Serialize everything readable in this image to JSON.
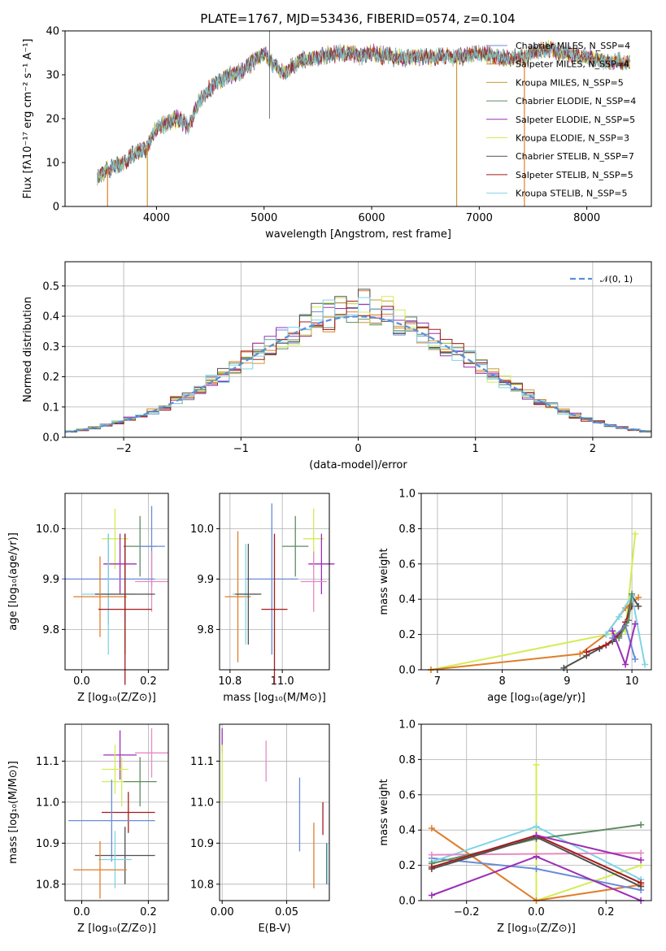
{
  "colors": {
    "Chabrier MILES": "#6a8bd8",
    "Salpeter MILES": "#e07e2b",
    "Kroupa MILES": "#c99a2e",
    "Chabrier ELODIE": "#5e8c62",
    "Salpeter ELODIE": "#9b2fb5",
    "Kroupa ELODIE": "#d4ec55",
    "Chabrier STELIB": "#505050",
    "Salpeter STELIB": "#a51c1c",
    "Kroupa STELIB": "#7fd4e6",
    "pink": "#e78ac3",
    "normal": "#5b8fd6"
  },
  "chart_data": [
    {
      "type": "line",
      "title": "PLATE=1767, MJD=53436, FIBERID=0574, z=0.104",
      "xlabel": "wavelength [Angstrom, rest frame]",
      "ylabel": "Flux [fλ10⁻¹⁷ erg cm⁻² s⁻¹ A⁻¹]",
      "xlim": [
        3150,
        8600
      ],
      "ylim": [
        0,
        40
      ],
      "xticks": [
        "4000",
        "5000",
        "6000",
        "7000",
        "8000"
      ],
      "yticks": [
        "0",
        "10",
        "20",
        "30",
        "40"
      ],
      "legend_position": "top-right",
      "legend": [
        "Chabrier MILES, N_SSP=4",
        "Salpeter MILES, N_SSP=4",
        "Kroupa MILES, N_SSP=5",
        "Chabrier ELODIE, N_SSP=4",
        "Salpeter ELODIE, N_SSP=5",
        "Kroupa ELODIE, N_SSP=3",
        "Chabrier STELIB, N_SSP=7",
        "Salpeter STELIB, N_SSP=5",
        "Kroupa STELIB, N_SSP=5"
      ],
      "continuum": {
        "x": [
          3450,
          3600,
          3700,
          3800,
          3900,
          4000,
          4100,
          4200,
          4300,
          4400,
          4500,
          4600,
          4800,
          4900,
          5000,
          5100,
          5200,
          5300,
          5500,
          5700,
          5800,
          5900,
          6000,
          6200,
          6400,
          6600,
          6800,
          7000,
          7200,
          7400,
          7600,
          7800,
          8000,
          8200,
          8400
        ],
        "y": [
          7,
          9,
          10,
          12,
          13,
          18,
          19,
          20,
          18,
          24,
          27,
          29,
          31,
          33,
          35,
          32,
          30,
          33,
          34,
          35,
          35,
          34,
          35,
          34,
          34,
          34,
          34,
          35,
          34,
          34,
          36,
          35,
          34,
          33,
          33
        ]
      }
    },
    {
      "type": "line",
      "xlabel": "(data-model)/error",
      "ylabel": "Normed distribution",
      "xlim": [
        -2.5,
        2.5
      ],
      "ylim": [
        0,
        0.58
      ],
      "xticks": [
        "−2",
        "−1",
        "0",
        "1",
        "2"
      ],
      "yticks": [
        "0.0",
        "0.1",
        "0.2",
        "0.3",
        "0.4",
        "0.5"
      ],
      "grid": true,
      "legend_position": "top-right",
      "series": [
        {
          "name": "𝒩(0, 1)",
          "dash": true
        }
      ]
    },
    {
      "type": "scatter",
      "xlabel": "Z [log₁₀(Z/Z⊙)]",
      "ylabel": "age  [log₁₀(age/yr)]",
      "xlim": [
        -0.05,
        0.26
      ],
      "ylim": [
        9.72,
        10.07
      ],
      "xticks": [
        "0.0",
        "0.2"
      ],
      "yticks": [
        "9.8",
        "9.9",
        "10.0"
      ],
      "grid": true,
      "points": [
        {
          "x": 0.1,
          "y": 9.98,
          "dx": 0.04,
          "dy": 0.06,
          "c": "Kroupa ELODIE"
        },
        {
          "x": 0.175,
          "y": 9.965,
          "dx": 0.05,
          "dy": 0.06,
          "c": "Chabrier ELODIE"
        },
        {
          "x": 0.21,
          "y": 9.965,
          "dx": 0.04,
          "dy": 0.08,
          "c": "Chabrier MILES"
        },
        {
          "x": 0.115,
          "y": 9.93,
          "dx": 0.05,
          "dy": 0.06,
          "c": "Salpeter ELODIE"
        },
        {
          "x": 0.21,
          "y": 9.895,
          "dx": 0.05,
          "dy": 0.06,
          "c": "pink"
        },
        {
          "x": 0.08,
          "y": 9.9,
          "dx": 0.14,
          "dy": 0.09,
          "c": "Chabrier MILES"
        },
        {
          "x": 0.08,
          "y": 9.87,
          "dx": 0.08,
          "dy": 0.12,
          "c": "Kroupa STELIB"
        },
        {
          "x": 0.13,
          "y": 9.87,
          "dx": 0.09,
          "dy": 0.12,
          "c": "Chabrier STELIB"
        },
        {
          "x": 0.055,
          "y": 9.865,
          "dx": 0.08,
          "dy": 0.08,
          "c": "Salpeter MILES"
        },
        {
          "x": 0.13,
          "y": 9.84,
          "dx": 0.08,
          "dy": 0.15,
          "c": "Salpeter STELIB"
        }
      ]
    },
    {
      "type": "scatter",
      "xlabel": "mass [log₁₀(M/M⊙)]",
      "xlim": [
        10.76,
        11.18
      ],
      "ylim": [
        9.72,
        10.07
      ],
      "xticks": [
        "10.8",
        "11.0"
      ],
      "yticks": [
        "9.8",
        "9.9",
        "10.0"
      ],
      "grid": true,
      "points": [
        {
          "x": 11.12,
          "y": 9.98,
          "dx": 0.04,
          "dy": 0.06,
          "c": "Kroupa ELODIE"
        },
        {
          "x": 11.05,
          "y": 9.965,
          "dx": 0.05,
          "dy": 0.06,
          "c": "Chabrier ELODIE"
        },
        {
          "x": 11.15,
          "y": 9.93,
          "dx": 0.05,
          "dy": 0.06,
          "c": "Salpeter ELODIE"
        },
        {
          "x": 11.12,
          "y": 9.895,
          "dx": 0.05,
          "dy": 0.06,
          "c": "pink"
        },
        {
          "x": 10.96,
          "y": 9.9,
          "dx": 0.1,
          "dy": 0.15,
          "c": "Chabrier MILES"
        },
        {
          "x": 10.83,
          "y": 9.865,
          "dx": 0.05,
          "dy": 0.13,
          "c": "Salpeter MILES"
        },
        {
          "x": 10.86,
          "y": 9.87,
          "dx": 0.05,
          "dy": 0.1,
          "c": "Kroupa STELIB"
        },
        {
          "x": 10.87,
          "y": 9.87,
          "dx": 0.05,
          "dy": 0.1,
          "c": "Chabrier STELIB"
        },
        {
          "x": 10.97,
          "y": 9.84,
          "dx": 0.05,
          "dy": 0.15,
          "c": "Salpeter STELIB"
        }
      ]
    },
    {
      "type": "line",
      "xlabel": "age  [log₁₀(age/yr)]",
      "ylabel": "mass weight",
      "xlim": [
        6.75,
        10.3
      ],
      "ylim": [
        0,
        1.0
      ],
      "xticks": [
        "7",
        "8",
        "9",
        "10"
      ],
      "yticks": [
        "0.0",
        "0.2",
        "0.4",
        "0.6",
        "0.8",
        "1.0"
      ],
      "grid": true,
      "series": [
        {
          "c": "Kroupa ELODIE",
          "x": [
            6.9,
            9.9,
            10.05
          ],
          "y": [
            0.0,
            0.22,
            0.77
          ]
        },
        {
          "c": "Salpeter MILES",
          "x": [
            6.9,
            9.2,
            9.6,
            9.9,
            10.1
          ],
          "y": [
            0.0,
            0.09,
            0.2,
            0.35,
            0.41
          ]
        },
        {
          "c": "Chabrier STELIB",
          "x": [
            8.95,
            9.3,
            9.5,
            9.7,
            9.8,
            9.9,
            10.0,
            10.1
          ],
          "y": [
            0.01,
            0.08,
            0.12,
            0.16,
            0.19,
            0.25,
            0.42,
            0.36
          ]
        },
        {
          "c": "Salpeter STELIB",
          "x": [
            9.3,
            9.6,
            9.8,
            9.9,
            10.0
          ],
          "y": [
            0.1,
            0.14,
            0.2,
            0.27,
            0.36
          ]
        },
        {
          "c": "Kroupa STELIB",
          "x": [
            9.6,
            9.8,
            10.0,
            10.2
          ],
          "y": [
            0.2,
            0.3,
            0.42,
            0.03
          ]
        },
        {
          "c": "Chabrier MILES",
          "x": [
            9.7,
            9.9,
            10.05
          ],
          "y": [
            0.18,
            0.25,
            0.06
          ]
        },
        {
          "c": "Salpeter ELODIE",
          "x": [
            9.7,
            9.9,
            10.05
          ],
          "y": [
            0.22,
            0.03,
            0.26
          ]
        },
        {
          "c": "Chabrier ELODIE",
          "x": [
            9.8,
            9.95,
            10.0
          ],
          "y": [
            0.18,
            0.28,
            0.43
          ]
        }
      ]
    },
    {
      "type": "scatter",
      "xlabel": "Z [log₁₀(Z/Z⊙)]",
      "ylabel": "mass [log₁₀(M/M⊙)]",
      "xlim": [
        -0.05,
        0.26
      ],
      "ylim": [
        10.76,
        11.19
      ],
      "xticks": [
        "0.0",
        "0.2"
      ],
      "yticks": [
        "10.8",
        "10.9",
        "11.0",
        "11.1"
      ],
      "grid": true,
      "points": [
        {
          "x": 0.21,
          "y": 11.12,
          "dx": 0.05,
          "dy": 0.06,
          "c": "pink"
        },
        {
          "x": 0.115,
          "y": 11.115,
          "dx": 0.05,
          "dy": 0.06,
          "c": "Salpeter ELODIE"
        },
        {
          "x": 0.1,
          "y": 11.08,
          "dx": 0.04,
          "dy": 0.06,
          "c": "Kroupa ELODIE"
        },
        {
          "x": 0.12,
          "y": 11.05,
          "dx": 0.06,
          "dy": 0.06,
          "c": "Kroupa ELODIE"
        },
        {
          "x": 0.175,
          "y": 11.05,
          "dx": 0.05,
          "dy": 0.06,
          "c": "Chabrier ELODIE"
        },
        {
          "x": 0.14,
          "y": 10.975,
          "dx": 0.08,
          "dy": 0.05,
          "c": "Salpeter STELIB"
        },
        {
          "x": 0.09,
          "y": 10.955,
          "dx": 0.13,
          "dy": 0.1,
          "c": "Chabrier MILES"
        },
        {
          "x": 0.13,
          "y": 10.87,
          "dx": 0.09,
          "dy": 0.07,
          "c": "Chabrier STELIB"
        },
        {
          "x": 0.1,
          "y": 10.86,
          "dx": 0.05,
          "dy": 0.07,
          "c": "Kroupa STELIB"
        },
        {
          "x": 0.055,
          "y": 10.835,
          "dx": 0.08,
          "dy": 0.07,
          "c": "Salpeter MILES"
        }
      ]
    },
    {
      "type": "scatter",
      "xlabel": "E(B-V)",
      "xlim": [
        -0.002,
        0.083
      ],
      "ylim": [
        10.76,
        11.19
      ],
      "xticks": [
        "0.00",
        "0.05"
      ],
      "yticks": [
        "10.8",
        "10.9",
        "11.0",
        "11.1"
      ],
      "grid": true,
      "points": [
        {
          "x": 0.0,
          "y": 11.15,
          "dx": 0,
          "dy": 0.03,
          "c": "Salpeter ELODIE"
        },
        {
          "x": 0.0,
          "y": 11.07,
          "dx": 0,
          "dy": 0.07,
          "c": "Kroupa ELODIE"
        },
        {
          "x": 0.034,
          "y": 11.1,
          "dx": 0,
          "dy": 0.05,
          "c": "pink"
        },
        {
          "x": 0.06,
          "y": 10.97,
          "dx": 0,
          "dy": 0.09,
          "c": "Chabrier MILES"
        },
        {
          "x": 0.071,
          "y": 10.87,
          "dx": 0,
          "dy": 0.08,
          "c": "Salpeter MILES"
        },
        {
          "x": 0.078,
          "y": 10.96,
          "dx": 0,
          "dy": 0.04,
          "c": "Salpeter STELIB"
        },
        {
          "x": 0.081,
          "y": 10.85,
          "dx": 0,
          "dy": 0.05,
          "c": "Chabrier STELIB"
        },
        {
          "x": 0.0815,
          "y": 10.85,
          "dx": 0,
          "dy": 0.05,
          "c": "Kroupa STELIB"
        }
      ]
    },
    {
      "type": "line",
      "xlabel": "Z [log₁₀(Z/Z⊙)]",
      "ylabel": "mass weight",
      "xlim": [
        -0.33,
        0.33
      ],
      "ylim": [
        0,
        1.0
      ],
      "xticks": [
        "−0.2",
        "0.0",
        "0.2"
      ],
      "yticks": [
        "0.0",
        "0.2",
        "0.4",
        "0.6",
        "0.8",
        "1.0"
      ],
      "grid": true,
      "series": [
        {
          "c": "Kroupa ELODIE",
          "x": [
            0.0,
            0.0,
            0.3
          ],
          "y": [
            0.77,
            0.0,
            0.2
          ]
        },
        {
          "c": "Salpeter MILES",
          "x": [
            -0.3,
            0.0,
            0.3
          ],
          "y": [
            0.41,
            0.0,
            0.09
          ]
        },
        {
          "c": "Chabrier MILES",
          "x": [
            -0.3,
            0.0,
            0.3
          ],
          "y": [
            0.24,
            0.18,
            0.06
          ]
        },
        {
          "c": "Kroupa STELIB",
          "x": [
            -0.3,
            0.0,
            0.3
          ],
          "y": [
            0.22,
            0.42,
            0.12
          ]
        },
        {
          "c": "Salpeter ELODIE",
          "x": [
            -0.3,
            0.0,
            0.3
          ],
          "y": [
            0.03,
            0.25,
            0.0
          ]
        },
        {
          "c": "pink",
          "x": [
            -0.3,
            0.3
          ],
          "y": [
            0.26,
            0.27
          ]
        },
        {
          "c": "Chabrier ELODIE",
          "x": [
            -0.3,
            0.0,
            0.3
          ],
          "y": [
            0.21,
            0.35,
            0.43
          ]
        },
        {
          "c": "Chabrier STELIB",
          "x": [
            -0.3,
            0.0,
            0.3
          ],
          "y": [
            0.18,
            0.36,
            0.08
          ]
        },
        {
          "c": "Salpeter STELIB",
          "x": [
            -0.3,
            0.0,
            0.3
          ],
          "y": [
            0.19,
            0.37,
            0.1
          ]
        },
        {
          "c": "Salpeter ELODIE",
          "x": [
            0.0,
            0.3
          ],
          "y": [
            0.37,
            0.23
          ]
        }
      ]
    }
  ]
}
